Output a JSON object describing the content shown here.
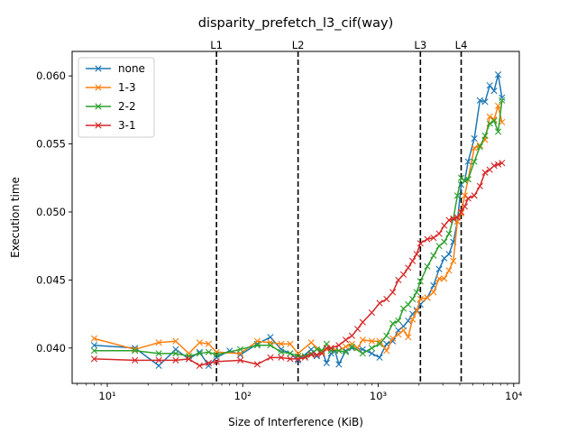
{
  "chart_data": {
    "type": "line",
    "title": "disparity_prefetch_l3_cif(way)",
    "xlabel": "Size of Interference (KiB)",
    "ylabel": "Execution time",
    "xscale": "log",
    "xlim": [
      5.5,
      11000
    ],
    "ylim": [
      0.0374,
      0.0618
    ],
    "x_ticks": [
      {
        "value": 10,
        "label": "10¹"
      },
      {
        "value": 100,
        "label": "10²"
      },
      {
        "value": 1000,
        "label": "10³"
      },
      {
        "value": 10000,
        "label": "10⁴"
      }
    ],
    "y_ticks": [
      {
        "value": 0.04,
        "label": "0.040"
      },
      {
        "value": 0.045,
        "label": "0.045"
      },
      {
        "value": 0.05,
        "label": "0.050"
      },
      {
        "value": 0.055,
        "label": "0.055"
      },
      {
        "value": 0.06,
        "label": "0.060"
      }
    ],
    "vlines": [
      {
        "label": "L1",
        "x": 64
      },
      {
        "label": "L2",
        "x": 256
      },
      {
        "label": "L3",
        "x": 2048
      },
      {
        "label": "L4",
        "x": 4096
      }
    ],
    "legend_position": "upper-left",
    "grid": false,
    "series": [
      {
        "name": "none",
        "color": "#1f77b4",
        "points": [
          [
            8,
            0.0402
          ],
          [
            16,
            0.04
          ],
          [
            24,
            0.0387
          ],
          [
            32,
            0.0399
          ],
          [
            40,
            0.0392
          ],
          [
            48,
            0.0397
          ],
          [
            56,
            0.0387
          ],
          [
            64,
            0.0393
          ],
          [
            80,
            0.0398
          ],
          [
            96,
            0.0395
          ],
          [
            128,
            0.0403
          ],
          [
            160,
            0.0408
          ],
          [
            192,
            0.0399
          ],
          [
            224,
            0.0396
          ],
          [
            256,
            0.0391
          ],
          [
            320,
            0.0399
          ],
          [
            352,
            0.0394
          ],
          [
            384,
            0.0398
          ],
          [
            416,
            0.0389
          ],
          [
            448,
            0.0396
          ],
          [
            480,
            0.0398
          ],
          [
            512,
            0.0388
          ],
          [
            576,
            0.0398
          ],
          [
            640,
            0.04
          ],
          [
            768,
            0.0399
          ],
          [
            896,
            0.0396
          ],
          [
            1024,
            0.0393
          ],
          [
            1152,
            0.0403
          ],
          [
            1280,
            0.0405
          ],
          [
            1408,
            0.0413
          ],
          [
            1536,
            0.0416
          ],
          [
            1664,
            0.042
          ],
          [
            1792,
            0.0425
          ],
          [
            1920,
            0.0428
          ],
          [
            2048,
            0.0432
          ],
          [
            2304,
            0.0437
          ],
          [
            2560,
            0.0446
          ],
          [
            2816,
            0.0458
          ],
          [
            3072,
            0.0466
          ],
          [
            3328,
            0.0469
          ],
          [
            3584,
            0.0478
          ],
          [
            3840,
            0.0493
          ],
          [
            4096,
            0.052
          ],
          [
            4352,
            0.0523
          ],
          [
            4608,
            0.0537
          ],
          [
            5120,
            0.0554
          ],
          [
            5632,
            0.0582
          ],
          [
            6144,
            0.0581
          ],
          [
            6656,
            0.0593
          ],
          [
            7168,
            0.0589
          ],
          [
            7680,
            0.0601
          ],
          [
            8192,
            0.0584
          ]
        ]
      },
      {
        "name": "1-3",
        "color": "#ff7f0e",
        "points": [
          [
            8,
            0.0407
          ],
          [
            16,
            0.0399
          ],
          [
            24,
            0.0404
          ],
          [
            32,
            0.0405
          ],
          [
            40,
            0.0396
          ],
          [
            48,
            0.0404
          ],
          [
            56,
            0.0403
          ],
          [
            64,
            0.0397
          ],
          [
            96,
            0.0396
          ],
          [
            128,
            0.0405
          ],
          [
            160,
            0.0404
          ],
          [
            192,
            0.0403
          ],
          [
            224,
            0.0403
          ],
          [
            256,
            0.0396
          ],
          [
            320,
            0.0404
          ],
          [
            384,
            0.0397
          ],
          [
            448,
            0.04
          ],
          [
            512,
            0.0398
          ],
          [
            576,
            0.0401
          ],
          [
            640,
            0.0403
          ],
          [
            704,
            0.04
          ],
          [
            768,
            0.0406
          ],
          [
            896,
            0.0405
          ],
          [
            1024,
            0.0405
          ],
          [
            1152,
            0.0398
          ],
          [
            1280,
            0.0407
          ],
          [
            1408,
            0.041
          ],
          [
            1536,
            0.0413
          ],
          [
            1664,
            0.0408
          ],
          [
            1792,
            0.0421
          ],
          [
            1920,
            0.0427
          ],
          [
            2048,
            0.0436
          ],
          [
            2304,
            0.0437
          ],
          [
            2560,
            0.0441
          ],
          [
            2816,
            0.0451
          ],
          [
            3072,
            0.0451
          ],
          [
            3328,
            0.0457
          ],
          [
            3584,
            0.0464
          ],
          [
            3840,
            0.0493
          ],
          [
            4096,
            0.0499
          ],
          [
            4352,
            0.0512
          ],
          [
            4608,
            0.0524
          ],
          [
            5120,
            0.0547
          ],
          [
            5632,
            0.0549
          ],
          [
            6144,
            0.0553
          ],
          [
            6656,
            0.057
          ],
          [
            7168,
            0.0568
          ],
          [
            7680,
            0.0578
          ],
          [
            8192,
            0.0566
          ]
        ]
      },
      {
        "name": "2-2",
        "color": "#2ca02c",
        "points": [
          [
            8,
            0.0398
          ],
          [
            16,
            0.0398
          ],
          [
            24,
            0.0396
          ],
          [
            32,
            0.0396
          ],
          [
            40,
            0.0394
          ],
          [
            48,
            0.0396
          ],
          [
            56,
            0.0397
          ],
          [
            64,
            0.0395
          ],
          [
            96,
            0.0399
          ],
          [
            128,
            0.0402
          ],
          [
            160,
            0.0402
          ],
          [
            192,
            0.0397
          ],
          [
            224,
            0.0396
          ],
          [
            256,
            0.0394
          ],
          [
            288,
            0.0394
          ],
          [
            320,
            0.0396
          ],
          [
            352,
            0.0399
          ],
          [
            384,
            0.0398
          ],
          [
            416,
            0.0403
          ],
          [
            448,
            0.0398
          ],
          [
            512,
            0.0398
          ],
          [
            576,
            0.0397
          ],
          [
            640,
            0.0401
          ],
          [
            768,
            0.0396
          ],
          [
            896,
            0.04
          ],
          [
            1024,
            0.0403
          ],
          [
            1152,
            0.0409
          ],
          [
            1280,
            0.0418
          ],
          [
            1408,
            0.042
          ],
          [
            1536,
            0.0429
          ],
          [
            1664,
            0.0432
          ],
          [
            1792,
            0.0436
          ],
          [
            1920,
            0.0441
          ],
          [
            2048,
            0.0449
          ],
          [
            2304,
            0.046
          ],
          [
            2560,
            0.0468
          ],
          [
            2816,
            0.0475
          ],
          [
            3072,
            0.0478
          ],
          [
            3328,
            0.0484
          ],
          [
            3584,
            0.0495
          ],
          [
            3840,
            0.0512
          ],
          [
            4096,
            0.0525
          ],
          [
            4352,
            0.0523
          ],
          [
            4608,
            0.0524
          ],
          [
            5120,
            0.0537
          ],
          [
            5632,
            0.0548
          ],
          [
            6144,
            0.0556
          ],
          [
            6656,
            0.0565
          ],
          [
            7168,
            0.0567
          ],
          [
            7680,
            0.0559
          ],
          [
            8192,
            0.0582
          ]
        ]
      },
      {
        "name": "3-1",
        "color": "#d62728",
        "points": [
          [
            8,
            0.0392
          ],
          [
            16,
            0.0391
          ],
          [
            24,
            0.0391
          ],
          [
            32,
            0.0391
          ],
          [
            40,
            0.0392
          ],
          [
            48,
            0.0387
          ],
          [
            56,
            0.0389
          ],
          [
            64,
            0.039
          ],
          [
            96,
            0.0391
          ],
          [
            128,
            0.0388
          ],
          [
            160,
            0.0393
          ],
          [
            192,
            0.0393
          ],
          [
            224,
            0.0392
          ],
          [
            256,
            0.0392
          ],
          [
            288,
            0.0393
          ],
          [
            320,
            0.0395
          ],
          [
            352,
            0.0395
          ],
          [
            384,
            0.0396
          ],
          [
            416,
            0.04
          ],
          [
            448,
            0.04
          ],
          [
            512,
            0.0402
          ],
          [
            576,
            0.0406
          ],
          [
            640,
            0.0409
          ],
          [
            704,
            0.0414
          ],
          [
            768,
            0.0419
          ],
          [
            896,
            0.0426
          ],
          [
            1024,
            0.0433
          ],
          [
            1152,
            0.0436
          ],
          [
            1280,
            0.0441
          ],
          [
            1408,
            0.045
          ],
          [
            1536,
            0.0454
          ],
          [
            1664,
            0.0459
          ],
          [
            1792,
            0.0464
          ],
          [
            1920,
            0.0469
          ],
          [
            2048,
            0.0477
          ],
          [
            2304,
            0.048
          ],
          [
            2560,
            0.0481
          ],
          [
            2816,
            0.0484
          ],
          [
            3072,
            0.049
          ],
          [
            3328,
            0.0494
          ],
          [
            3584,
            0.0495
          ],
          [
            3840,
            0.0496
          ],
          [
            4096,
            0.05
          ],
          [
            4352,
            0.0504
          ],
          [
            4608,
            0.051
          ],
          [
            5120,
            0.0512
          ],
          [
            5632,
            0.0519
          ],
          [
            6144,
            0.0529
          ],
          [
            6656,
            0.0531
          ],
          [
            7168,
            0.0534
          ],
          [
            7680,
            0.0535
          ],
          [
            8192,
            0.0536
          ]
        ]
      }
    ]
  }
}
